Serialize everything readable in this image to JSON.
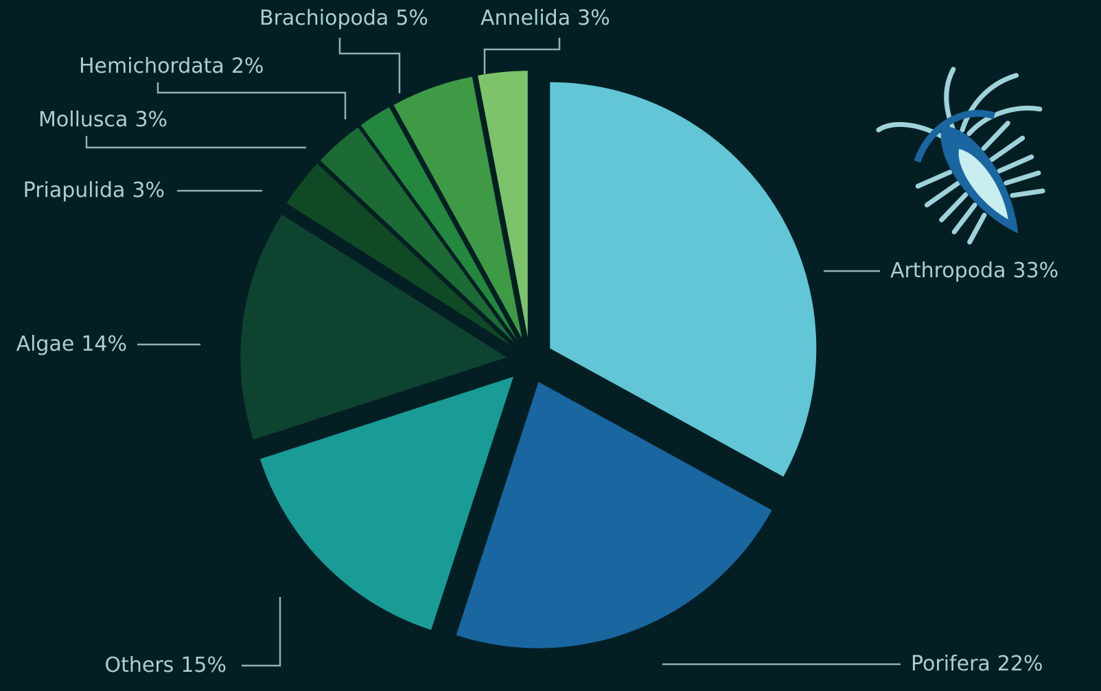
{
  "chart_data": {
    "type": "pie",
    "categories": [
      "Arthropoda",
      "Porifera",
      "Others",
      "Algae",
      "Priapulida",
      "Mollusca",
      "Hemichordata",
      "Brachiopoda",
      "Annelida"
    ],
    "values": [
      33,
      22,
      15,
      14,
      3,
      3,
      2,
      5,
      3
    ],
    "value_labels": [
      "33%",
      "22%",
      "15%",
      "14%",
      "3%",
      "3%",
      "2%",
      "5%",
      "3%"
    ],
    "colors": [
      "#62c6d6",
      "#1a66a0",
      "#1a9c96",
      "#0e4330",
      "#0f4a24",
      "#1c6b35",
      "#23873e",
      "#3f9a45",
      "#7cc36a"
    ]
  }
}
